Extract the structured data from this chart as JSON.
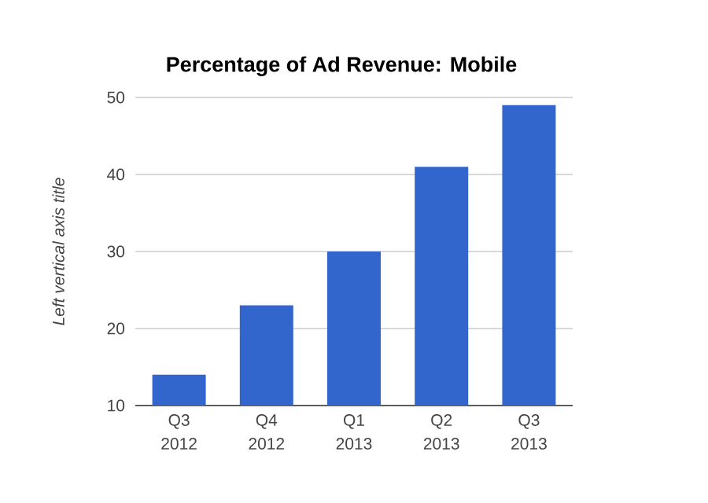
{
  "chart_data": {
    "type": "bar",
    "title": "Percentage of Ad Revenue: Mobile",
    "ylabel": "Left vertical axis title",
    "categories": [
      "Q3 2012",
      "Q4 2012",
      "Q1 2013",
      "Q2 2013",
      "Q3 2013"
    ],
    "values": [
      14,
      23,
      30,
      41,
      49
    ],
    "color": "#3366cc",
    "ylim": [
      10,
      50
    ],
    "yticks": [
      10,
      20,
      30,
      40,
      50
    ],
    "grid": "y"
  }
}
